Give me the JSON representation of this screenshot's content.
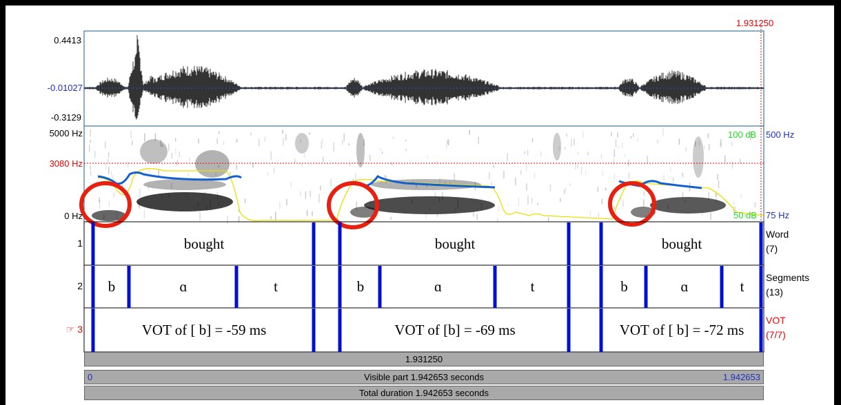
{
  "cursor_time": "1.931250",
  "waveform": {
    "max_label": "0.4413",
    "mid_label": "-0.01027",
    "min_label": "-0.3129"
  },
  "spectrogram": {
    "top_label": "5000 Hz",
    "cursor_label": "3080 Hz",
    "bottom_label": "0 Hz",
    "intensity_top": "100 dB",
    "intensity_bottom": "50 dB",
    "pitch_top": "500 Hz",
    "pitch_bottom": "75 Hz"
  },
  "selected_marker": "☞",
  "tiers": [
    {
      "number": "1",
      "name": "Word",
      "count": "(7)",
      "intervals": [
        "bought",
        "bought",
        "bought"
      ]
    },
    {
      "number": "2",
      "name": "Segments",
      "count": "(13)",
      "intervals": [
        "b",
        "ɑ",
        "t",
        "b",
        "ɑ",
        "t",
        "b",
        "ɑ",
        "t"
      ]
    },
    {
      "number": "3",
      "name": "VOT",
      "count": "(7/7)",
      "intervals": [
        "VOT of [ b] = -59 ms",
        "VOT of [b] = -69 ms",
        "VOT of [ b] = -72 ms"
      ]
    }
  ],
  "bars": {
    "cursor": "1.931250",
    "visible_start": "0",
    "visible": "Visible part 1.942653 seconds",
    "visible_end": "1.942653",
    "total": "Total duration 1.942653 seconds"
  }
}
